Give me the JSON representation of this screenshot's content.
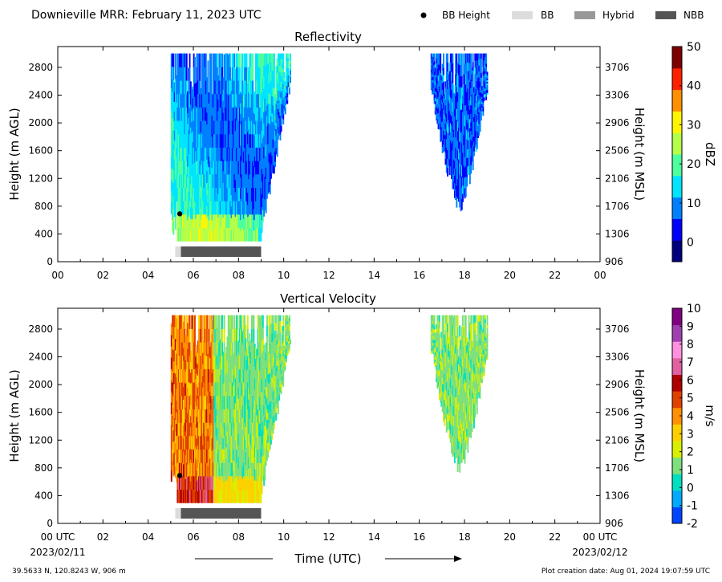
{
  "header": {
    "title": "Downieville MRR:  February 11, 2023 UTC",
    "legend": [
      {
        "name": "bb-height",
        "label": "BB Height",
        "kind": "dot",
        "color": "#000000"
      },
      {
        "name": "bb",
        "label": "BB",
        "kind": "box",
        "color": "#dcdcdc"
      },
      {
        "name": "hybrid",
        "label": "Hybrid",
        "kind": "box",
        "color": "#999999"
      },
      {
        "name": "nbb",
        "label": "NBB",
        "kind": "box",
        "color": "#555555"
      }
    ]
  },
  "footer": {
    "location": "39.5633 N, 120.8243 W, 906 m",
    "creation": "Plot creation date: Aug 01, 2024 19:07:59 UTC",
    "xlabel": "Time (UTC)",
    "start_date": "2023/02/11",
    "end_date": "2023/02/12"
  },
  "chart_data": [
    {
      "type": "heatmap",
      "title": "Reflectivity",
      "ylabel": "Height (m AGL)",
      "y2label": "Height (m MSL)",
      "xlim": [
        0,
        24
      ],
      "ylim": [
        0,
        3100
      ],
      "x_ticks": [
        "00",
        "02",
        "04",
        "06",
        "08",
        "10",
        "12",
        "14",
        "16",
        "18",
        "20",
        "22",
        "00"
      ],
      "y_ticks": [
        0,
        400,
        800,
        1200,
        1600,
        2000,
        2400,
        2800
      ],
      "y2_ticks": [
        906,
        1306,
        1706,
        2106,
        2506,
        2906,
        3306,
        3706
      ],
      "colorbar": {
        "label": "dBZ",
        "range": [
          -5,
          50
        ],
        "ticks": [
          0,
          10,
          20,
          30,
          40,
          50
        ],
        "colors": [
          "#00007f",
          "#0000ff",
          "#0080ff",
          "#00e5ff",
          "#4dff9e",
          "#b3ff4a",
          "#fff500",
          "#ff9000",
          "#ff2000",
          "#7f0000"
        ]
      },
      "bb_height": [
        {
          "x": 5.4,
          "y": 690
        }
      ],
      "bb_type_bars": [
        {
          "type": "BB",
          "start": 5.2,
          "end": 5.45
        },
        {
          "type": "NBB",
          "start": 5.45,
          "end": 9.0
        }
      ],
      "echo_regions": [
        {
          "start": 5.0,
          "end": 10.3,
          "base": 300,
          "top": 3000,
          "description": "precipitation echo"
        },
        {
          "start": 16.5,
          "end": 19.0,
          "base": 700,
          "top": 3000,
          "description": "precipitation echo"
        }
      ]
    },
    {
      "type": "heatmap",
      "title": "Vertical Velocity",
      "ylabel": "Height (m AGL)",
      "y2label": "Height (m MSL)",
      "xlim": [
        0,
        24
      ],
      "ylim": [
        0,
        3100
      ],
      "x_ticks": [
        "00 UTC",
        "02",
        "04",
        "06",
        "08",
        "10",
        "12",
        "14",
        "16",
        "18",
        "20",
        "22",
        "00 UTC"
      ],
      "y_ticks": [
        0,
        400,
        800,
        1200,
        1600,
        2000,
        2400,
        2800
      ],
      "y2_ticks": [
        906,
        1306,
        1706,
        2106,
        2506,
        2906,
        3306,
        3706
      ],
      "colorbar": {
        "label": "m/s",
        "range": [
          -2,
          10
        ],
        "ticks": [
          -2,
          -1,
          0,
          1,
          2,
          3,
          4,
          5,
          6,
          7,
          8,
          9,
          10
        ],
        "colors": [
          "#0044ff",
          "#00aaff",
          "#00e0c0",
          "#7de07d",
          "#d8f000",
          "#ffd000",
          "#ff9000",
          "#e04000",
          "#b00000",
          "#e060a0",
          "#ff90e0",
          "#a040b0",
          "#800080"
        ]
      },
      "bb_height": [
        {
          "x": 5.4,
          "y": 690
        }
      ],
      "bb_type_bars": [
        {
          "type": "BB",
          "start": 5.2,
          "end": 5.45
        },
        {
          "type": "NBB",
          "start": 5.45,
          "end": 9.0
        }
      ],
      "echo_regions": [
        {
          "start": 5.0,
          "end": 10.3,
          "base": 300,
          "top": 3000,
          "description": "precipitation echo"
        },
        {
          "start": 16.5,
          "end": 19.0,
          "base": 700,
          "top": 3000,
          "description": "precipitation echo"
        }
      ]
    }
  ]
}
